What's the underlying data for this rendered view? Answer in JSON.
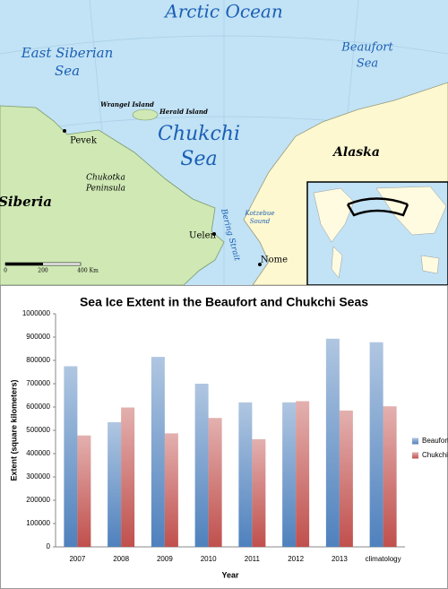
{
  "map": {
    "labels": [
      {
        "lines": [
          "Arctic Ocean"
        ]
      },
      {
        "lines": [
          "East Siberian",
          "Sea"
        ]
      },
      {
        "lines": [
          "Beaufort",
          "Sea"
        ]
      },
      {
        "lines": [
          "Wrangel Island"
        ]
      },
      {
        "lines": [
          "Herald Island"
        ]
      },
      {
        "lines": [
          "Chukchi",
          "Sea"
        ]
      },
      {
        "lines": [
          "Pevek"
        ]
      },
      {
        "lines": [
          "Alaska"
        ]
      },
      {
        "lines": [
          "Siberia"
        ]
      },
      {
        "lines": [
          "Chukotka",
          "Peninsula"
        ]
      },
      {
        "lines": [
          "Uelen"
        ]
      },
      {
        "lines": [
          "Bering Strait"
        ]
      },
      {
        "lines": [
          "Kotzebue",
          "Sound"
        ]
      },
      {
        "lines": [
          "Nome"
        ]
      },
      {
        "lines": [
          "0"
        ]
      },
      {
        "lines": [
          "200"
        ]
      },
      {
        "lines": [
          "400 Km"
        ]
      }
    ]
  },
  "chart_data": {
    "type": "bar",
    "title": "Sea Ice Extent in the Beaufort and Chukchi Seas",
    "x_label": "Year",
    "y_label": "Extent (square kilometers)",
    "categories": [
      "2007",
      "2008",
      "2009",
      "2010",
      "2011",
      "2012",
      "2013",
      "climatology"
    ],
    "series": [
      {
        "name": "Beaufort",
        "color": "#4f81bd",
        "values": [
          775000,
          535000,
          815000,
          700000,
          620000,
          620000,
          893000,
          878000
        ]
      },
      {
        "name": "Chukchi",
        "color": "#c0504d",
        "values": [
          478000,
          598000,
          487000,
          553000,
          462000,
          625000,
          585000,
          603000
        ]
      }
    ],
    "ylim": [
      0,
      1000000
    ],
    "yticks": [
      0,
      100000,
      200000,
      300000,
      400000,
      500000,
      600000,
      700000,
      800000,
      900000,
      1000000
    ],
    "grid": false,
    "legend": "right"
  }
}
